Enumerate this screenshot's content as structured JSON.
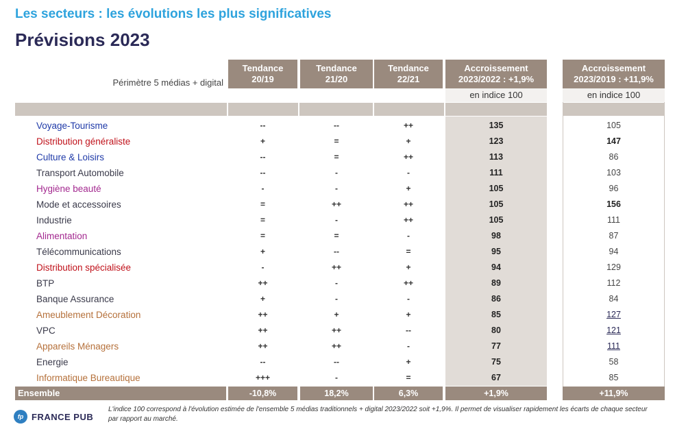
{
  "page": {
    "subtitle": "Les secteurs : les évolutions les plus significatives",
    "title": "Prévisions 2023",
    "perimetre": "Périmètre 5 médias + digital"
  },
  "headers": [
    {
      "line1": "Tendance",
      "line2": "20/19"
    },
    {
      "line1": "Tendance",
      "line2": "21/20"
    },
    {
      "line1": "Tendance",
      "line2": "22/21"
    },
    {
      "line1": "Accroissement",
      "line2": "2023/2022 : +1,9%"
    },
    {
      "line1": "Accroissement",
      "line2": "2023/2019 : +11,9%"
    }
  ],
  "indice_label_4": "en indice 100",
  "indice_label_5": "en indice 100",
  "colors": {
    "blue": "#1f3aa8",
    "red": "#c0121b",
    "magenta": "#a3288f",
    "brown": "#b5703a",
    "dark": "#3a3a4a",
    "header_bg": "#9a8a7e",
    "accent_title": "#2ea3dd"
  },
  "rows": [
    {
      "name": "Voyage-Tourisme",
      "color": "#1f3aa8",
      "t1": "--",
      "t2": "--",
      "t3": "++",
      "v4": "135",
      "v5": "105",
      "v5_style": ""
    },
    {
      "name": "Distribution généraliste",
      "color": "#c0121b",
      "t1": "+",
      "t2": "=",
      "t3": "+",
      "v4": "123",
      "v5": "147",
      "v5_style": "bold"
    },
    {
      "name": "Culture & Loisirs",
      "color": "#1f3aa8",
      "t1": "--",
      "t2": "=",
      "t3": "++",
      "v4": "113",
      "v5": "86",
      "v5_style": ""
    },
    {
      "name": "Transport Automobile",
      "color": "#3a3a4a",
      "t1": "--",
      "t2": "-",
      "t3": "-",
      "v4": "111",
      "v5": "103",
      "v5_style": ""
    },
    {
      "name": "Hygiène beauté",
      "color": "#a3288f",
      "t1": "-",
      "t2": "-",
      "t3": "+",
      "v4": "105",
      "v5": "96",
      "v5_style": ""
    },
    {
      "name": "Mode et accessoires",
      "color": "#3a3a4a",
      "t1": "=",
      "t2": "++",
      "t3": "++",
      "v4": "105",
      "v5": "156",
      "v5_style": "bold"
    },
    {
      "name": "Industrie",
      "color": "#3a3a4a",
      "t1": "=",
      "t2": "-",
      "t3": "++",
      "v4": "105",
      "v5": "111",
      "v5_style": ""
    },
    {
      "name": "Alimentation",
      "color": "#a3288f",
      "t1": "=",
      "t2": "=",
      "t3": "-",
      "v4": "98",
      "v5": "87",
      "v5_style": ""
    },
    {
      "name": "Télécommunications",
      "color": "#3a3a4a",
      "t1": "+",
      "t2": "--",
      "t3": "=",
      "v4": "95",
      "v5": "94",
      "v5_style": ""
    },
    {
      "name": "Distribution spécialisée",
      "color": "#c0121b",
      "t1": "-",
      "t2": "++",
      "t3": "+",
      "v4": "94",
      "v5": "129",
      "v5_style": ""
    },
    {
      "name": "BTP",
      "color": "#3a3a4a",
      "t1": "++",
      "t2": "-",
      "t3": "++",
      "v4": "89",
      "v5": "112",
      "v5_style": ""
    },
    {
      "name": "Banque Assurance",
      "color": "#3a3a4a",
      "t1": "+",
      "t2": "-",
      "t3": "-",
      "v4": "86",
      "v5": "84",
      "v5_style": ""
    },
    {
      "name": "Ameublement Décoration",
      "color": "#b5703a",
      "t1": "++",
      "t2": "+",
      "t3": "+",
      "v4": "85",
      "v5": "127",
      "v5_style": "ul"
    },
    {
      "name": "VPC",
      "color": "#3a3a4a",
      "t1": "++",
      "t2": "++",
      "t3": "--",
      "v4": "80",
      "v5": "121",
      "v5_style": "ul"
    },
    {
      "name": "Appareils Ménagers",
      "color": "#b5703a",
      "t1": "++",
      "t2": "++",
      "t3": "-",
      "v4": "77",
      "v5": "111",
      "v5_style": "ul"
    },
    {
      "name": "Energie",
      "color": "#3a3a4a",
      "t1": "--",
      "t2": "--",
      "t3": "+",
      "v4": "75",
      "v5": "58",
      "v5_style": ""
    },
    {
      "name": "Informatique Bureautique",
      "color": "#b5703a",
      "t1": "+++",
      "t2": "-",
      "t3": "=",
      "v4": "67",
      "v5": "85",
      "v5_style": ""
    }
  ],
  "total": {
    "label": "Ensemble",
    "t1": "-10,8%",
    "t2": "18,2%",
    "t3": "6,3%",
    "v4": "+1,9%",
    "v5": "+11,9%"
  },
  "footer": {
    "logo_mark": "fp",
    "logo_text": "FRANCE PUB",
    "note": "L'indice 100 correspond à l'évolution estimée de l'ensemble 5 médias traditionnels + digital 2023/2022 soit +1,9%. Il permet de visualiser rapidement les écarts de chaque secteur par rapport au marché."
  }
}
